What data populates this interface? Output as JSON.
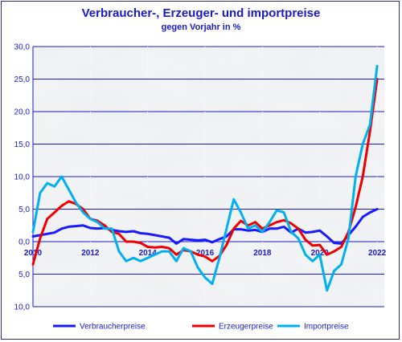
{
  "chart_data": {
    "type": "line",
    "title": "Verbraucher-, Erzeuger- und importpreise",
    "subtitle": "gegen Vorjahr in %",
    "ylim": [
      -10,
      30
    ],
    "yticks": [
      30,
      25,
      20,
      15,
      10,
      5,
      0,
      -5,
      -10
    ],
    "ytick_labels": [
      "30,0",
      "25,0",
      "20,0",
      "15,0",
      "10,0",
      "5,0",
      "0,0",
      "5,0",
      "10,0"
    ],
    "xlim": [
      2010.0,
      2022.25
    ],
    "xticks": [
      2010,
      2012,
      2014,
      2016,
      2018,
      2020,
      2022
    ],
    "xtick_labels": [
      "2010",
      "2012",
      "2014",
      "2016",
      "2018",
      "2020",
      "2022"
    ],
    "grid": true,
    "legend_position": "bottom",
    "series": [
      {
        "name": "Verbraucherpreise",
        "color": "#1a1aff",
        "x": [
          2010.0,
          2010.25,
          2010.5,
          2010.75,
          2011.0,
          2011.25,
          2011.5,
          2011.75,
          2012.0,
          2012.25,
          2012.5,
          2012.75,
          2013.0,
          2013.25,
          2013.5,
          2013.75,
          2014.0,
          2014.25,
          2014.5,
          2014.75,
          2015.0,
          2015.25,
          2015.5,
          2015.75,
          2016.0,
          2016.25,
          2016.5,
          2016.75,
          2017.0,
          2017.25,
          2017.5,
          2017.75,
          2018.0,
          2018.25,
          2018.5,
          2018.75,
          2019.0,
          2019.25,
          2019.5,
          2019.75,
          2020.0,
          2020.25,
          2020.5,
          2020.75,
          2021.0,
          2021.25,
          2021.5,
          2021.75,
          2022.0
        ],
        "y": [
          0.8,
          1.0,
          1.2,
          1.4,
          2.0,
          2.3,
          2.4,
          2.5,
          2.1,
          2.0,
          2.1,
          1.8,
          1.6,
          1.5,
          1.6,
          1.3,
          1.2,
          1.0,
          0.8,
          0.6,
          -0.3,
          0.4,
          0.3,
          0.2,
          0.3,
          -0.1,
          0.4,
          0.8,
          1.9,
          1.9,
          1.7,
          1.8,
          1.5,
          2.0,
          2.0,
          2.3,
          1.4,
          2.0,
          1.4,
          1.5,
          1.7,
          0.8,
          -0.2,
          -0.3,
          1.0,
          2.3,
          3.8,
          4.5,
          5.0
        ]
      },
      {
        "name": "Erzeugerpreise",
        "color": "#ee0000",
        "x": [
          2010.0,
          2010.25,
          2010.5,
          2010.75,
          2011.0,
          2011.25,
          2011.5,
          2011.75,
          2012.0,
          2012.25,
          2012.5,
          2012.75,
          2013.0,
          2013.25,
          2013.5,
          2013.75,
          2014.0,
          2014.25,
          2014.5,
          2014.75,
          2015.0,
          2015.25,
          2015.5,
          2015.75,
          2016.0,
          2016.25,
          2016.5,
          2016.75,
          2017.0,
          2017.25,
          2017.5,
          2017.75,
          2018.0,
          2018.25,
          2018.5,
          2018.75,
          2019.0,
          2019.25,
          2019.5,
          2019.75,
          2020.0,
          2020.25,
          2020.5,
          2020.75,
          2021.0,
          2021.25,
          2021.5,
          2021.75,
          2022.0
        ],
        "y": [
          -3.5,
          0.5,
          3.5,
          4.5,
          5.5,
          6.2,
          5.8,
          5.0,
          3.5,
          3.2,
          2.5,
          1.5,
          1.2,
          0.0,
          0.0,
          -0.2,
          -0.8,
          -0.9,
          -0.8,
          -1.0,
          -2.0,
          -1.3,
          -1.5,
          -2.0,
          -2.3,
          -3.0,
          -2.2,
          -0.5,
          2.0,
          3.2,
          2.5,
          3.0,
          2.0,
          2.5,
          3.0,
          3.3,
          2.8,
          2.0,
          0.3,
          -0.6,
          -0.5,
          -2.0,
          -1.5,
          -0.8,
          1.5,
          5.3,
          10.0,
          17.0,
          25.0
        ]
      },
      {
        "name": "Importpreise",
        "color": "#00b0f0",
        "x": [
          2010.0,
          2010.25,
          2010.5,
          2010.75,
          2011.0,
          2011.25,
          2011.5,
          2011.75,
          2012.0,
          2012.25,
          2012.5,
          2012.75,
          2013.0,
          2013.25,
          2013.5,
          2013.75,
          2014.0,
          2014.25,
          2014.5,
          2014.75,
          2015.0,
          2015.25,
          2015.5,
          2015.75,
          2016.0,
          2016.25,
          2016.5,
          2016.75,
          2017.0,
          2017.25,
          2017.5,
          2017.75,
          2018.0,
          2018.25,
          2018.5,
          2018.75,
          2019.0,
          2019.25,
          2019.5,
          2019.75,
          2020.0,
          2020.25,
          2020.5,
          2020.75,
          2021.0,
          2021.25,
          2021.5,
          2021.75,
          2022.0
        ],
        "y": [
          1.5,
          7.5,
          9.0,
          8.5,
          10.0,
          8.0,
          6.0,
          4.5,
          3.5,
          3.0,
          2.0,
          2.0,
          -1.5,
          -3.0,
          -2.5,
          -3.0,
          -2.5,
          -2.0,
          -1.5,
          -1.5,
          -3.0,
          -1.0,
          -1.5,
          -4.0,
          -5.5,
          -6.5,
          -2.5,
          2.0,
          6.5,
          4.5,
          2.0,
          2.5,
          1.5,
          3.0,
          4.8,
          4.5,
          1.5,
          0.5,
          -2.0,
          -3.0,
          -2.0,
          -7.5,
          -4.5,
          -3.5,
          0.5,
          10.0,
          15.0,
          18.0,
          27.0
        ]
      }
    ]
  }
}
